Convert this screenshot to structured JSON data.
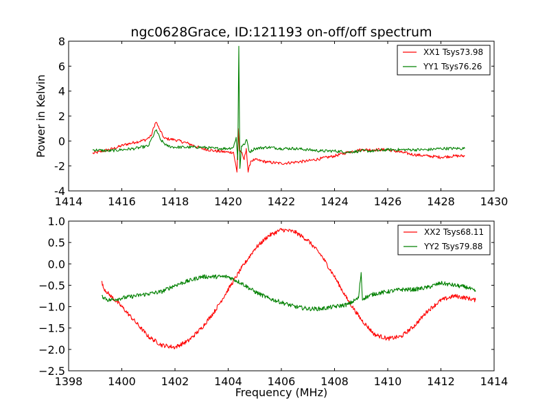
{
  "figure": {
    "title": "ngc0628Grace, ID:121193 on-off/off spectrum"
  },
  "chart_data": [
    {
      "type": "line",
      "title": "ngc0628Grace, ID:121193 on-off/off spectrum",
      "xlabel": "",
      "ylabel": "Power in Kelvin",
      "xlim": [
        1414,
        1430
      ],
      "ylim": [
        -4,
        8
      ],
      "xticks": [
        1414,
        1416,
        1418,
        1420,
        1422,
        1424,
        1426,
        1428,
        1430
      ],
      "yticks": [
        -4,
        -2,
        0,
        2,
        4,
        6,
        8
      ],
      "legend_position": "top-right",
      "series": [
        {
          "name": "XX1 Tsys73.98",
          "color": "#ff0000",
          "x": [
            1414.9,
            1415.3,
            1415.7,
            1416.1,
            1416.5,
            1416.9,
            1417.1,
            1417.25,
            1417.3,
            1417.4,
            1417.6,
            1418.0,
            1418.5,
            1419.0,
            1419.5,
            1420.0,
            1420.2,
            1420.33,
            1420.38,
            1420.42,
            1420.5,
            1420.6,
            1420.68,
            1420.75,
            1420.85,
            1421.0,
            1421.5,
            1422.0,
            1422.5,
            1423.0,
            1423.5,
            1424.0,
            1424.5,
            1425.0,
            1425.5,
            1426.0,
            1426.5,
            1427.0,
            1427.5,
            1428.0,
            1428.5,
            1428.9
          ],
          "y": [
            -1.0,
            -0.8,
            -0.6,
            -0.3,
            -0.1,
            0.1,
            0.4,
            1.4,
            1.5,
            1.0,
            0.2,
            0.1,
            -0.2,
            -0.6,
            -0.8,
            -0.9,
            -0.9,
            -2.5,
            1.0,
            -0.8,
            -0.9,
            -1.5,
            -0.6,
            -2.5,
            -1.6,
            -1.5,
            -1.7,
            -1.8,
            -1.7,
            -1.6,
            -1.4,
            -1.2,
            -0.9,
            -0.7,
            -0.7,
            -0.7,
            -0.9,
            -1.1,
            -1.2,
            -1.3,
            -1.2,
            -1.2
          ]
        },
        {
          "name": "YY1 Tsys76.26",
          "color": "#008000",
          "x": [
            1414.9,
            1415.5,
            1416.0,
            1416.5,
            1417.0,
            1417.15,
            1417.3,
            1417.45,
            1417.7,
            1418.0,
            1418.5,
            1419.0,
            1419.5,
            1420.0,
            1420.2,
            1420.3,
            1420.36,
            1420.4,
            1420.44,
            1420.5,
            1420.6,
            1420.7,
            1420.8,
            1421.0,
            1421.5,
            1422.0,
            1422.5,
            1423.0,
            1423.5,
            1424.0,
            1424.5,
            1425.0,
            1425.5,
            1426.0,
            1426.5,
            1427.0,
            1427.5,
            1428.0,
            1428.5,
            1428.9
          ],
          "y": [
            -0.7,
            -0.8,
            -0.7,
            -0.6,
            -0.4,
            0.3,
            0.9,
            0.1,
            -0.4,
            -0.5,
            -0.5,
            -0.5,
            -0.6,
            -0.6,
            -0.5,
            0.3,
            -1.5,
            7.6,
            -2.2,
            -0.4,
            -0.3,
            0.1,
            -0.9,
            -0.6,
            -0.5,
            -0.6,
            -0.6,
            -0.7,
            -0.8,
            -0.8,
            -0.9,
            -0.8,
            -0.8,
            -0.7,
            -0.7,
            -0.7,
            -0.7,
            -0.6,
            -0.6,
            -0.6
          ]
        }
      ]
    },
    {
      "type": "line",
      "title": "",
      "xlabel": "Frequency (MHz)",
      "ylabel": "",
      "xlim": [
        1398,
        1414
      ],
      "ylim": [
        -2.5,
        1.0
      ],
      "xticks": [
        1398,
        1400,
        1402,
        1404,
        1406,
        1408,
        1410,
        1412,
        1414
      ],
      "yticks": [
        -2.5,
        -2.0,
        -1.5,
        -1.0,
        -0.5,
        0.0,
        0.5,
        1.0
      ],
      "ytick_labels": [
        "−2.5",
        "−2.0",
        "−1.5",
        "−1.0",
        "−0.5",
        "0.0",
        "0.5",
        "1.0"
      ],
      "legend_position": "top-right",
      "series": [
        {
          "name": "XX2 Tsys68.11",
          "color": "#ff0000",
          "x": [
            1399.25,
            1399.3,
            1399.5,
            1400.0,
            1400.5,
            1401.0,
            1401.5,
            1402.0,
            1402.5,
            1403.0,
            1403.5,
            1404.0,
            1404.5,
            1405.0,
            1405.5,
            1406.0,
            1406.5,
            1407.0,
            1407.5,
            1408.0,
            1408.5,
            1409.0,
            1409.5,
            1410.0,
            1410.5,
            1411.0,
            1411.5,
            1412.0,
            1412.5,
            1413.0,
            1413.3
          ],
          "y": [
            -0.4,
            -0.55,
            -0.7,
            -1.0,
            -1.35,
            -1.7,
            -1.9,
            -1.95,
            -1.8,
            -1.5,
            -1.1,
            -0.6,
            -0.1,
            0.35,
            0.65,
            0.8,
            0.75,
            0.55,
            0.2,
            -0.3,
            -0.85,
            -1.3,
            -1.65,
            -1.75,
            -1.7,
            -1.45,
            -1.1,
            -0.85,
            -0.75,
            -0.8,
            -0.85
          ]
        },
        {
          "name": "YY2 Tsys79.88",
          "color": "#008000",
          "x": [
            1399.25,
            1399.5,
            1400.0,
            1400.5,
            1401.0,
            1401.5,
            1402.0,
            1402.5,
            1403.0,
            1403.5,
            1404.0,
            1404.5,
            1405.0,
            1405.5,
            1406.0,
            1406.5,
            1407.0,
            1407.5,
            1408.0,
            1408.5,
            1408.9,
            1409.0,
            1409.05,
            1409.1,
            1409.5,
            1410.0,
            1410.5,
            1411.0,
            1411.5,
            1412.0,
            1412.5,
            1413.0,
            1413.3
          ],
          "y": [
            -0.75,
            -0.85,
            -0.8,
            -0.75,
            -0.7,
            -0.65,
            -0.5,
            -0.4,
            -0.3,
            -0.3,
            -0.3,
            -0.45,
            -0.65,
            -0.8,
            -0.9,
            -1.0,
            -1.05,
            -1.05,
            -1.0,
            -0.95,
            -0.8,
            -0.2,
            -0.85,
            -0.8,
            -0.7,
            -0.65,
            -0.6,
            -0.6,
            -0.55,
            -0.45,
            -0.5,
            -0.55,
            -0.65
          ]
        }
      ]
    }
  ]
}
